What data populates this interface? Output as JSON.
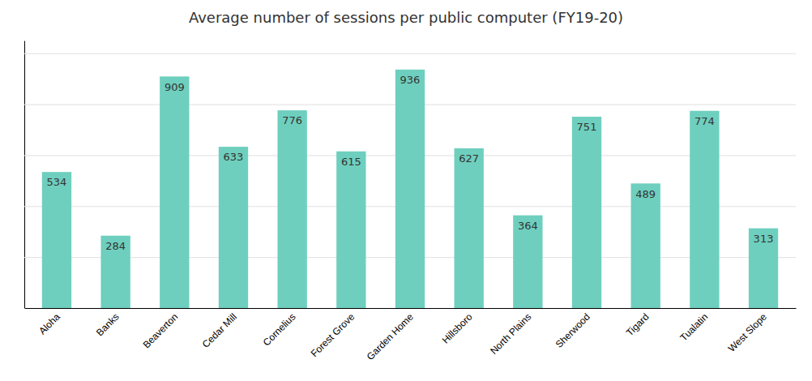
{
  "chart_data": {
    "type": "bar",
    "title": "Average number of sessions per public computer (FY19-20)",
    "categories": [
      "Aloha",
      "Banks",
      "Beaverton",
      "Cedar Mill",
      "Cornelius",
      "Forest Grove",
      "Garden Home",
      "Hillsboro",
      "North Plains",
      "Sherwood",
      "Tigard",
      "Tualatin",
      "West Slope"
    ],
    "values": [
      534,
      284,
      909,
      633,
      776,
      615,
      936,
      627,
      364,
      751,
      489,
      774,
      313
    ],
    "color": "#6ECFBE",
    "ylim": [
      0,
      1050
    ],
    "yticks": [
      0,
      200,
      400,
      600,
      800,
      1000
    ],
    "grid": true,
    "data_labels": true,
    "tick_labels": "x"
  }
}
